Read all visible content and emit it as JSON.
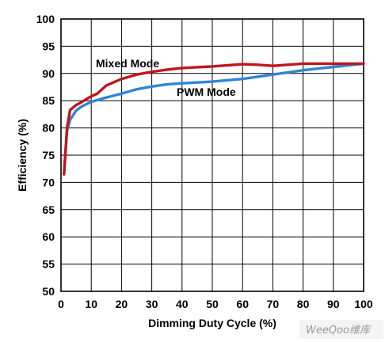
{
  "chart_data": {
    "type": "line",
    "xlabel": "Dimming Duty Cycle (%)",
    "ylabel": "Efficiency (%)",
    "xlim": [
      0,
      100
    ],
    "ylim": [
      50,
      100
    ],
    "x_ticks": [
      0,
      10,
      20,
      30,
      40,
      50,
      60,
      70,
      80,
      90,
      100
    ],
    "y_ticks": [
      50,
      55,
      60,
      65,
      70,
      75,
      80,
      85,
      90,
      95,
      100
    ],
    "grid": true,
    "series": [
      {
        "name": "Mixed Mode",
        "color": "#c0171c",
        "x": [
          1,
          2,
          3,
          5,
          7,
          9,
          10,
          12,
          15,
          20,
          25,
          30,
          35,
          40,
          50,
          60,
          65,
          70,
          80,
          90,
          100
        ],
        "y": [
          71.5,
          80,
          83.3,
          84.2,
          84.8,
          85.5,
          85.8,
          86.3,
          87.8,
          89,
          89.8,
          90.3,
          90.7,
          91,
          91.3,
          91.7,
          91.6,
          91.4,
          91.8,
          91.8,
          91.8
        ]
      },
      {
        "name": "PWM Mode",
        "color": "#2e86d4",
        "x": [
          1,
          2,
          3,
          5,
          7,
          10,
          15,
          20,
          25,
          30,
          35,
          40,
          50,
          60,
          70,
          80,
          90,
          100
        ],
        "y": [
          71.5,
          79.5,
          81.5,
          83.2,
          84,
          84.8,
          85.6,
          86.3,
          87.1,
          87.6,
          88,
          88.2,
          88.5,
          89,
          89.8,
          90.6,
          91.2,
          91.8
        ]
      }
    ]
  },
  "watermark": {
    "text": "WeeQoo维库"
  }
}
